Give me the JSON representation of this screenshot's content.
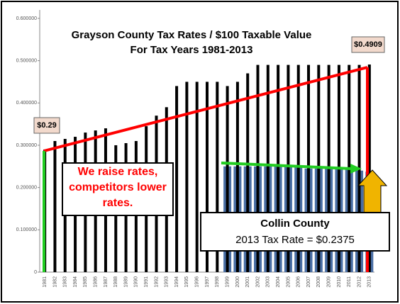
{
  "chart_data": {
    "type": "bar",
    "title": [
      "Grayson County Tax Rates / $100 Taxable Value",
      "For Tax Years 1981-2013"
    ],
    "categories": [
      "1981",
      "1982",
      "1983",
      "1984",
      "1985",
      "1986",
      "1987",
      "1988",
      "1989",
      "1990",
      "1991",
      "1992",
      "1993",
      "1994",
      "1995",
      "1996",
      "1997",
      "1998",
      "1999",
      "2000",
      "2001",
      "2002",
      "2003",
      "2004",
      "2005",
      "2006",
      "2007",
      "2008",
      "2009",
      "2010",
      "2011",
      "2012",
      "2013"
    ],
    "series": [
      {
        "name": "Grayson County",
        "color": "#000000",
        "values": [
          0.29,
          0.31,
          0.315,
          0.32,
          0.33,
          0.335,
          0.34,
          0.3,
          0.305,
          0.31,
          0.345,
          0.37,
          0.39,
          0.44,
          0.45,
          0.45,
          0.45,
          0.45,
          0.44,
          0.45,
          0.47,
          0.49,
          0.49,
          0.49,
          0.49,
          0.49,
          0.49,
          0.49,
          0.49,
          0.49,
          0.49,
          0.49,
          0.4909
        ]
      },
      {
        "name": "Collin County",
        "color": "#4a6fa5",
        "values": [
          null,
          null,
          null,
          null,
          null,
          null,
          null,
          null,
          null,
          null,
          null,
          null,
          null,
          null,
          null,
          null,
          null,
          null,
          0.25,
          0.25,
          0.25,
          0.25,
          0.25,
          0.25,
          0.25,
          0.25,
          0.245,
          0.245,
          0.245,
          0.245,
          0.245,
          0.24,
          0.2375
        ]
      }
    ],
    "ylim": [
      0,
      0.62
    ],
    "yticks": [
      0,
      {
        "value": 0.1,
        "label": "0.100000"
      },
      {
        "value": 0.2,
        "label": "0.200000"
      },
      {
        "value": 0.3,
        "label": "0.300000"
      },
      {
        "value": 0.4,
        "label": "0.400000"
      },
      {
        "value": 0.5,
        "label": "0.500000"
      },
      {
        "value": 0.6,
        "label": "0.600000"
      }
    ],
    "annotations": [
      "$0.29",
      "$0.4909",
      "We raise rates, competitors lower rates.",
      "Collin County",
      "2013 Tax Rate = $0.2375"
    ]
  }
}
